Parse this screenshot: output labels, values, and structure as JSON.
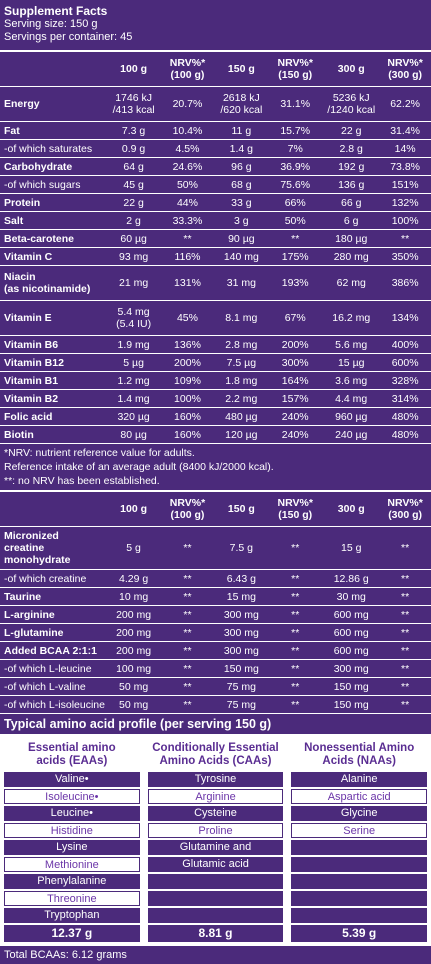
{
  "title": "Supplement Facts",
  "serving_size": "Serving size: 150 g",
  "servings": "Servings per container: 45",
  "head1": [
    "",
    "100 g",
    "NRV%*\n(100 g)",
    "150 g",
    "NRV%*\n(150 g)",
    "300 g",
    "NRV%*\n(300 g)"
  ],
  "rows1": [
    {
      "n": "Energy",
      "v": [
        "1746 kJ\n/413 kcal",
        "20.7%",
        "2618 kJ\n/620 kcal",
        "31.1%",
        "5236 kJ\n/1240 kcal",
        "62.2%"
      ],
      "h": "xtall",
      "sub": false
    },
    {
      "n": "Fat",
      "v": [
        "7.3 g",
        "10.4%",
        "11 g",
        "15.7%",
        "22 g",
        "31.4%"
      ],
      "sub": false
    },
    {
      "n": "-of which saturates",
      "v": [
        "0.9 g",
        "4.5%",
        "1.4 g",
        "7%",
        "2.8 g",
        "14%"
      ],
      "sub": true
    },
    {
      "n": "Carbohydrate",
      "v": [
        "64 g",
        "24.6%",
        "96 g",
        "36.9%",
        "192 g",
        "73.8%"
      ],
      "sub": false
    },
    {
      "n": "-of which sugars",
      "v": [
        "45 g",
        "50%",
        "68 g",
        "75.6%",
        "136 g",
        "151%"
      ],
      "sub": true
    },
    {
      "n": "Protein",
      "v": [
        "22 g",
        "44%",
        "33 g",
        "66%",
        "66 g",
        "132%"
      ],
      "sub": false
    },
    {
      "n": "Salt",
      "v": [
        "2 g",
        "33.3%",
        "3 g",
        "50%",
        "6 g",
        "100%"
      ],
      "sub": false
    },
    {
      "n": "Beta-carotene",
      "v": [
        "60 µg",
        "**",
        "90 µg",
        "**",
        "180 µg",
        "**"
      ],
      "sub": false
    },
    {
      "n": "Vitamin C",
      "v": [
        "93 mg",
        "116%",
        "140 mg",
        "175%",
        "280 mg",
        "350%"
      ],
      "sub": false
    },
    {
      "n": "Niacin\n(as nicotinamide)",
      "v": [
        "21 mg",
        "131%",
        "31 mg",
        "193%",
        "62 mg",
        "386%"
      ],
      "h": "xtall",
      "sub": false
    },
    {
      "n": "Vitamin E",
      "v": [
        "5.4 mg\n(5.4 IU)",
        "45%",
        "8.1 mg",
        "67%",
        "16.2 mg",
        "134%"
      ],
      "h": "xtall",
      "sub": false
    },
    {
      "n": "Vitamin B6",
      "v": [
        "1.9 mg",
        "136%",
        "2.8 mg",
        "200%",
        "5.6 mg",
        "400%"
      ],
      "sub": false
    },
    {
      "n": "Vitamin B12",
      "v": [
        "5 µg",
        "200%",
        "7.5 µg",
        "300%",
        "15 µg",
        "600%"
      ],
      "sub": false
    },
    {
      "n": "Vitamin B1",
      "v": [
        "1.2 mg",
        "109%",
        "1.8 mg",
        "164%",
        "3.6 mg",
        "328%"
      ],
      "sub": false
    },
    {
      "n": "Vitamin B2",
      "v": [
        "1.4 mg",
        "100%",
        "2.2 mg",
        "157%",
        "4.4 mg",
        "314%"
      ],
      "sub": false
    },
    {
      "n": "Folic acid",
      "v": [
        "320 µg",
        "160%",
        "480 µg",
        "240%",
        "960 µg",
        "480%"
      ],
      "sub": false
    },
    {
      "n": "Biotin",
      "v": [
        "80 µg",
        "160%",
        "120 µg",
        "240%",
        "240 µg",
        "480%"
      ],
      "sub": false
    }
  ],
  "notes": [
    "*NRV: nutrient reference value for adults.",
    "Reference intake of an average adult (8400 kJ/2000 kcal).",
    "**: no NRV has been established."
  ],
  "head2": [
    "",
    "100 g",
    "NRV%*\n(100 g)",
    "150 g",
    "NRV%*\n(150 g)",
    "300 g",
    "NRV%*\n(300 g)"
  ],
  "rows2": [
    {
      "n": "Micronized\ncreatine\nmonohydrate",
      "v": [
        "5 g",
        "**",
        "7.5 g",
        "**",
        "15 g",
        "**"
      ],
      "h": "xxtall",
      "sub": false
    },
    {
      "n": "-of which creatine",
      "v": [
        "4.29 g",
        "**",
        "6.43 g",
        "**",
        "12.86 g",
        "**"
      ],
      "sub": true
    },
    {
      "n": "Taurine",
      "v": [
        "10 mg",
        "**",
        "15 mg",
        "**",
        "30 mg",
        "**"
      ],
      "sub": false
    },
    {
      "n": "L-arginine",
      "v": [
        "200 mg",
        "**",
        "300 mg",
        "**",
        "600 mg",
        "**"
      ],
      "sub": false
    },
    {
      "n": "L-glutamine",
      "v": [
        "200 mg",
        "**",
        "300 mg",
        "**",
        "600 mg",
        "**"
      ],
      "sub": false
    },
    {
      "n": "Added BCAA 2:1:1",
      "v": [
        "200 mg",
        "**",
        "300 mg",
        "**",
        "600 mg",
        "**"
      ],
      "sub": false
    },
    {
      "n": "-of which L-leucine",
      "v": [
        "100 mg",
        "**",
        "150 mg",
        "**",
        "300 mg",
        "**"
      ],
      "sub": true
    },
    {
      "n": "-of which L-valine",
      "v": [
        "50 mg",
        "**",
        "75 mg",
        "**",
        "150 mg",
        "**"
      ],
      "sub": true
    },
    {
      "n": "-of which L-isoleucine",
      "v": [
        "50 mg",
        "**",
        "75 mg",
        "**",
        "150 mg",
        "**"
      ],
      "sub": true
    }
  ],
  "amino_title": "Typical amino acid profile (per serving 150 g)",
  "eaa": {
    "h": "Essential amino\nacids (EAAs)",
    "items": [
      "Valine•",
      "Isoleucine•",
      "Leucine•",
      "Histidine",
      "Lysine",
      "Methionine",
      "Phenylalanine",
      "Threonine",
      "Tryptophan"
    ],
    "total": "12.37 g"
  },
  "caa": {
    "h": "Conditionally Essential\nAmino Acids (CAAs)",
    "items": [
      "Tyrosine",
      "Arginine",
      "Cysteine",
      "Proline",
      "Glutamine and",
      "Glutamic acid"
    ],
    "total": "8.81 g"
  },
  "naa": {
    "h": "Nonessential Amino\nAcids (NAAs)",
    "items": [
      "Alanine",
      "Aspartic acid",
      "Glycine",
      "Serine"
    ],
    "total": "5.39 g"
  },
  "bcaa": "Total BCAAs: 6.12 grams"
}
